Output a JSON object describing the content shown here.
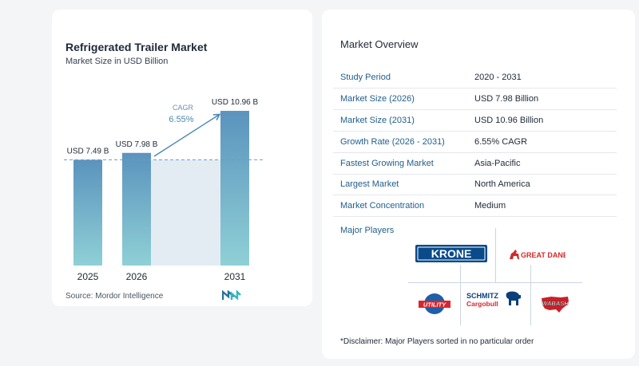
{
  "chart_data": {
    "type": "bar",
    "title": "Refrigerated Trailer Market",
    "subtitle": "Market Size in USD Billion",
    "categories": [
      "2025",
      "2026",
      "2031"
    ],
    "values": [
      7.49,
      7.98,
      10.96
    ],
    "value_labels": [
      "USD 7.49 B",
      "USD 7.98 B",
      "USD 10.96 B"
    ],
    "reference_line_value": 7.49,
    "cagr_label": "CAGR",
    "cagr_value": "6.55%",
    "ylim": [
      0,
      11.3
    ],
    "colors": {
      "bar_top": "#5b93bd",
      "bar_bottom": "#8fd0d6",
      "band": "#e3ecf3",
      "accent": "#4a88b8"
    }
  },
  "source": "Source:  Mordor Intelligence",
  "overview": {
    "title": "Market Overview",
    "rows": [
      {
        "label": "Study Period",
        "value": "2020 - 2031"
      },
      {
        "label": "Market Size (2026)",
        "value": "USD 7.98 Billion"
      },
      {
        "label": "Market Size (2031)",
        "value": "USD 10.96 Billion"
      },
      {
        "label": "Growth Rate (2026 - 2031)",
        "value": "6.55% CAGR"
      },
      {
        "label": "Fastest Growing Market",
        "value": "Asia-Pacific"
      },
      {
        "label": "Largest Market",
        "value": "North America"
      },
      {
        "label": "Market Concentration",
        "value": "Medium"
      }
    ]
  },
  "players": {
    "label": "Major Players",
    "logos": {
      "krone": "KRONE",
      "great_dane": "GREAT DANE",
      "utility": "UTILITY",
      "schmitz_1": "SCHMITZ",
      "schmitz_2": "Cargobull",
      "wabash": "WABASH"
    }
  },
  "disclaimer": "*Disclaimer: Major Players sorted in no particular order"
}
